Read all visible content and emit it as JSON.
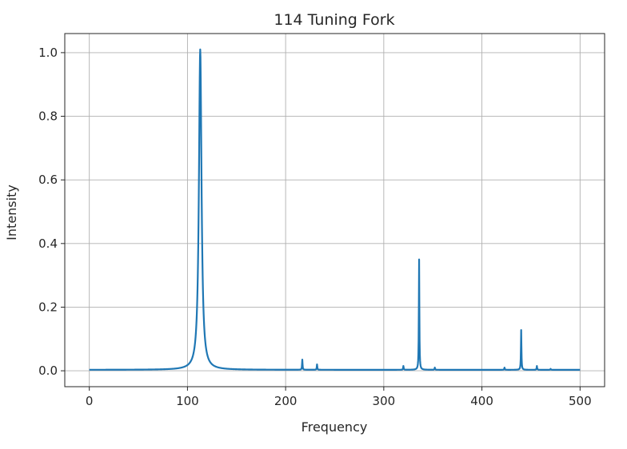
{
  "chart_data": {
    "type": "line",
    "title": "114 Tuning Fork",
    "xlabel": "Frequency",
    "ylabel": "Intensity",
    "xlim": [
      -25,
      525
    ],
    "ylim": [
      -0.05,
      1.06
    ],
    "xticks": [
      0,
      100,
      200,
      300,
      400,
      500
    ],
    "yticks": [
      0.0,
      0.2,
      0.4,
      0.6,
      0.8,
      1.0
    ],
    "xtick_labels": [
      "0",
      "100",
      "200",
      "300",
      "400",
      "500"
    ],
    "ytick_labels": [
      "0.0",
      "0.2",
      "0.4",
      "0.6",
      "0.8",
      "1.0"
    ],
    "grid": true,
    "series": [
      {
        "color": "#1f77b4",
        "baseline": 0.003,
        "peaks": [
          {
            "x": 113,
            "y": 1.01,
            "width": 1.6
          },
          {
            "x": 217,
            "y": 0.035,
            "width": 0.3
          },
          {
            "x": 232,
            "y": 0.02,
            "width": 0.3
          },
          {
            "x": 320,
            "y": 0.015,
            "width": 0.3
          },
          {
            "x": 336,
            "y": 0.35,
            "width": 0.3
          },
          {
            "x": 352,
            "y": 0.01,
            "width": 0.3
          },
          {
            "x": 423,
            "y": 0.01,
            "width": 0.3
          },
          {
            "x": 440,
            "y": 0.128,
            "width": 0.3
          },
          {
            "x": 456,
            "y": 0.015,
            "width": 0.3
          },
          {
            "x": 470,
            "y": 0.006,
            "width": 0.3
          }
        ]
      }
    ]
  }
}
